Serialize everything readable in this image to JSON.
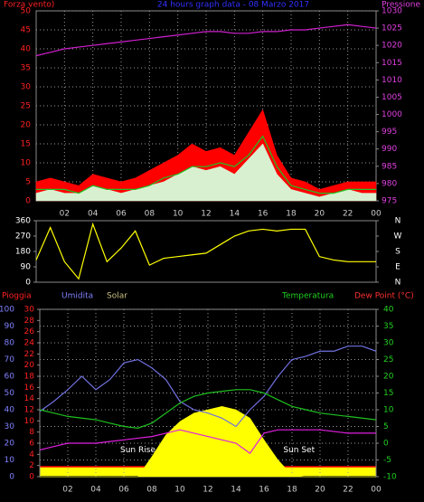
{
  "chart_data": [
    {
      "type": "line",
      "title": "24 hours graph data - 08 Marzo 2017",
      "ylabel": "Forza vento)",
      "y2label": "Pressione",
      "grid": true,
      "ycolor": "#ff2020",
      "y2color": "#e040e0",
      "x": [
        0,
        1,
        2,
        3,
        4,
        5,
        6,
        7,
        8,
        9,
        10,
        11,
        12,
        13,
        14,
        15,
        16,
        17,
        18,
        19,
        20,
        21,
        22,
        23,
        24
      ],
      "xlim": [
        0,
        24
      ],
      "xticks": [
        {
          "value": 2,
          "label": "02"
        },
        {
          "value": 4,
          "label": "04"
        },
        {
          "value": 6,
          "label": "06"
        },
        {
          "value": 8,
          "label": "08"
        },
        10,
        12,
        14,
        16,
        18,
        20,
        22,
        {
          "value": 24,
          "label": "00"
        }
      ],
      "ylim": [
        0,
        50
      ],
      "yticks": [
        0,
        5,
        10,
        15,
        20,
        25,
        30,
        35,
        40,
        45,
        50
      ],
      "y2lim": [
        975,
        1030
      ],
      "y2ticks": [
        975,
        980,
        985,
        990,
        995,
        1000,
        1005,
        1010,
        1015,
        1020,
        1025,
        1030
      ],
      "series": [
        {
          "color": "#ff0000",
          "fill": true,
          "values": [
            5,
            6,
            5,
            4,
            7,
            6,
            5,
            6,
            8,
            10,
            12,
            15,
            13,
            14,
            12,
            18,
            24,
            12,
            6,
            5,
            3,
            4,
            5,
            5,
            5
          ]
        },
        {
          "color": "#d8f0d0",
          "fill": true,
          "values": [
            2,
            3,
            2,
            2,
            4,
            3,
            2,
            3,
            4,
            5,
            7,
            9,
            8,
            9,
            7,
            11,
            15,
            7,
            3,
            2,
            1,
            2,
            3,
            2,
            2
          ]
        },
        {
          "color": "#20c020",
          "values": [
            3,
            3,
            3,
            2,
            4,
            3,
            3,
            3,
            4,
            6,
            7,
            9,
            9,
            10,
            9,
            12,
            17,
            9,
            4,
            3,
            2,
            2,
            3,
            3,
            3
          ]
        },
        {
          "color": "#d020d0",
          "axis": "y2",
          "values": [
            1017,
            1018,
            1019,
            1019.5,
            1020,
            1020.5,
            1021,
            1021.5,
            1022,
            1022.5,
            1023,
            1023.5,
            1024,
            1024,
            1023.5,
            1023.5,
            1024,
            1024,
            1024.5,
            1024.5,
            1025,
            1025.5,
            1026,
            1025.5,
            1025
          ]
        }
      ]
    },
    {
      "type": "line",
      "ycolor": "#ffffff",
      "y2color": "#ffffff",
      "x": [
        0,
        1,
        2,
        3,
        4,
        5,
        6,
        7,
        8,
        9,
        10,
        11,
        12,
        13,
        14,
        15,
        16,
        17,
        18,
        19,
        20,
        21,
        22,
        23,
        24
      ],
      "xlim": [
        0,
        24
      ],
      "ylim": [
        0,
        360
      ],
      "yticks": [
        0,
        90,
        180,
        270,
        360
      ],
      "y2lim": [
        0,
        360
      ],
      "y2ticks": [
        {
          "value": 360,
          "label": "N"
        },
        {
          "value": 270,
          "label": "W"
        },
        {
          "value": 180,
          "label": "S"
        },
        {
          "value": 90,
          "label": "E"
        },
        {
          "value": 0,
          "label": "N"
        }
      ],
      "series": [
        {
          "color": "#ffff00",
          "values": [
            130,
            320,
            120,
            20,
            340,
            120,
            200,
            300,
            100,
            140,
            150,
            160,
            170,
            220,
            270,
            300,
            310,
            300,
            310,
            310,
            150,
            130,
            120,
            120,
            120
          ]
        }
      ]
    },
    {
      "type": "line",
      "ylabel": "Umidita",
      "y2label": "Temperatura",
      "y3label": "Pioggia",
      "grid": true,
      "ycolor": "#8080ff",
      "y2color": "#20d020",
      "y3color": "#ff2020",
      "labels": [
        {
          "text": "Solar",
          "color": "#c8c080"
        },
        {
          "text": "Dew Point (°C)",
          "color": "#ff3030"
        }
      ],
      "annotations": [
        {
          "text": "Sun Rise",
          "x": 7,
          "y": 16
        },
        {
          "text": "Sun Set",
          "x": 18.5,
          "y": 16
        }
      ],
      "x": [
        0,
        1,
        2,
        3,
        4,
        5,
        6,
        7,
        8,
        9,
        10,
        11,
        12,
        13,
        14,
        15,
        16,
        17,
        18,
        19,
        20,
        21,
        22,
        23,
        24
      ],
      "xlim": [
        0,
        24
      ],
      "xticks": [
        {
          "value": 2,
          "label": "02"
        },
        {
          "value": 4,
          "label": "04"
        },
        {
          "value": 6,
          "label": "06"
        },
        {
          "value": 8,
          "label": "08"
        },
        10,
        12,
        14,
        16,
        18,
        20,
        22,
        {
          "value": 24,
          "label": "00"
        }
      ],
      "ylim": [
        0,
        100
      ],
      "yticks": [
        0,
        10,
        20,
        30,
        40,
        50,
        60,
        70,
        80,
        90,
        100
      ],
      "y2lim": [
        -10,
        40
      ],
      "y2ticks": [
        -10,
        -5,
        0,
        5,
        10,
        15,
        20,
        25,
        30,
        35,
        40
      ],
      "y3lim": [
        0,
        30
      ],
      "y3ticks": [
        0,
        2,
        4,
        6,
        8,
        10,
        12,
        14,
        16,
        18,
        20,
        22,
        24,
        26,
        28,
        30
      ],
      "series": [
        {
          "name": "Solar",
          "color": "#ffff00",
          "fill": true,
          "values": [
            0,
            0,
            0,
            0,
            0,
            0,
            0,
            0,
            12,
            25,
            33,
            38,
            40,
            42,
            40,
            35,
            22,
            10,
            1,
            0,
            0,
            0,
            0,
            0,
            0
          ]
        },
        {
          "name": "Umidita",
          "color": "#7070e0",
          "values": [
            39,
            45,
            52,
            60,
            52,
            58,
            68,
            70,
            65,
            58,
            45,
            40,
            38,
            35,
            30,
            40,
            48,
            60,
            70,
            72,
            75,
            75,
            78,
            78,
            75
          ]
        },
        {
          "name": "Temperatura",
          "color": "#20c020",
          "axis": "y2",
          "values": [
            10,
            9,
            8,
            7.5,
            7,
            6,
            5,
            4.5,
            6,
            9,
            12,
            14,
            15,
            15.5,
            16,
            16,
            15,
            13,
            11,
            10,
            9,
            8.5,
            8,
            7.5,
            7
          ]
        },
        {
          "name": "Dew Point (°C)",
          "color": "#e020e0",
          "axis": "y2",
          "values": [
            -2,
            -1,
            0,
            0,
            0,
            0.5,
            1,
            1.5,
            2,
            3,
            4,
            3,
            2,
            1,
            0,
            -3,
            3,
            4,
            4,
            4,
            4,
            3.5,
            3,
            3,
            3
          ]
        }
      ]
    }
  ]
}
